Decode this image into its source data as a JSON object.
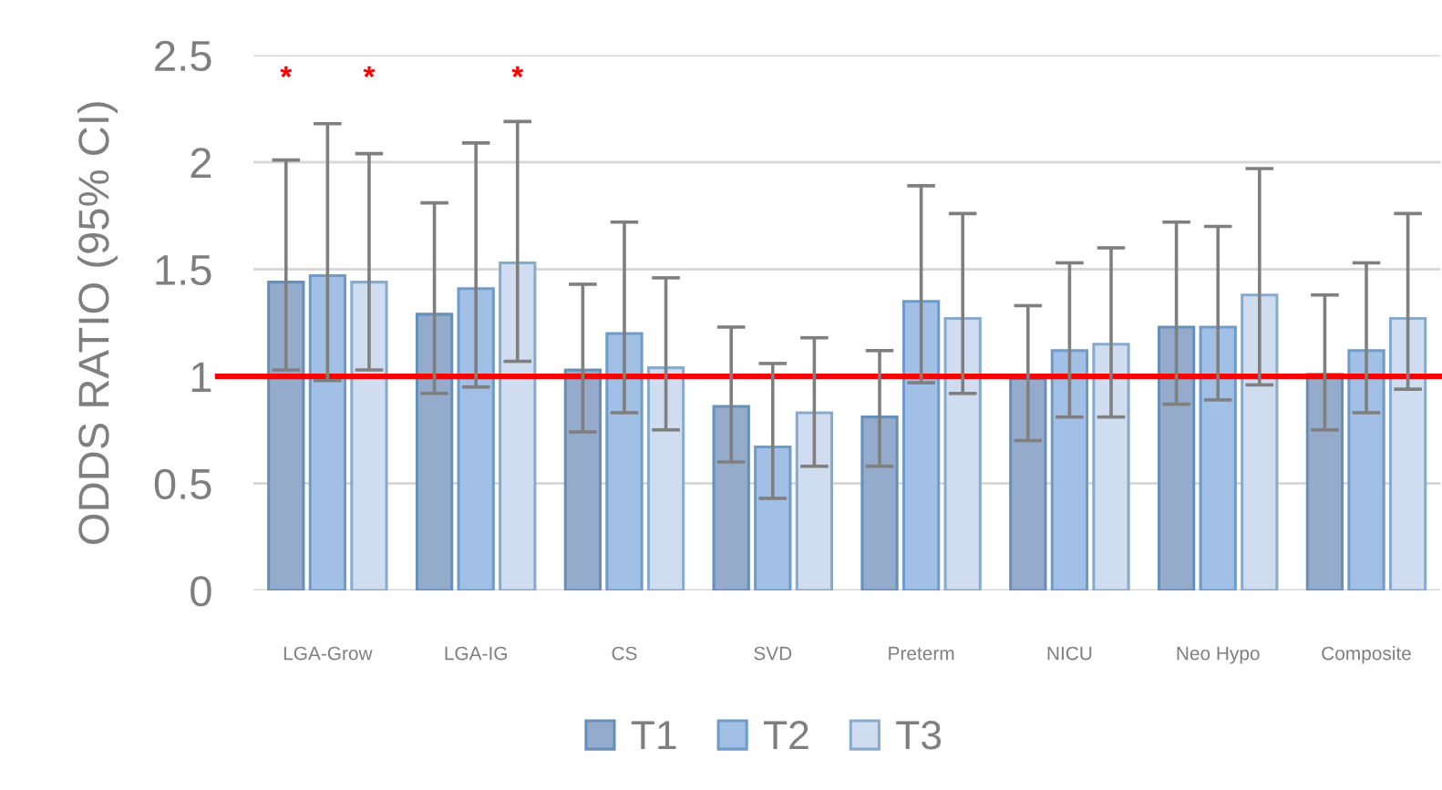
{
  "chart_data": {
    "type": "bar",
    "ylabel": "ODDS RATIO (95% CI)",
    "categories": [
      "LGA-Grow",
      "LGA-IG",
      "CS",
      "SVD",
      "Preterm",
      "NICU",
      "Neo Hypo",
      "Composite"
    ],
    "series": [
      {
        "name": "T1",
        "color": "#94abcb",
        "values": [
          1.44,
          1.29,
          1.03,
          0.86,
          0.81,
          0.99,
          1.23,
          1.01
        ],
        "errors": [
          [
            1.03,
            2.01
          ],
          [
            0.92,
            1.81
          ],
          [
            0.74,
            1.43
          ],
          [
            0.6,
            1.23
          ],
          [
            0.58,
            1.12
          ],
          [
            0.7,
            1.33
          ],
          [
            0.87,
            1.72
          ],
          [
            0.75,
            1.38
          ]
        ]
      },
      {
        "name": "T2",
        "color": "#a2c0e6",
        "values": [
          1.47,
          1.41,
          1.2,
          0.67,
          1.35,
          1.12,
          1.23,
          1.12
        ],
        "errors": [
          [
            0.98,
            2.18
          ],
          [
            0.95,
            2.09
          ],
          [
            0.83,
            1.72
          ],
          [
            0.43,
            1.06
          ],
          [
            0.97,
            1.89
          ],
          [
            0.81,
            1.53
          ],
          [
            0.89,
            1.7
          ],
          [
            0.83,
            1.53
          ]
        ]
      },
      {
        "name": "T3",
        "color": "#d0ddf0",
        "values": [
          1.44,
          1.53,
          1.04,
          0.83,
          1.27,
          1.15,
          1.38,
          1.27
        ],
        "errors": [
          [
            1.03,
            2.04
          ],
          [
            1.07,
            2.19
          ],
          [
            0.75,
            1.46
          ],
          [
            0.58,
            1.18
          ],
          [
            0.92,
            1.76
          ],
          [
            0.81,
            1.6
          ],
          [
            0.96,
            1.97
          ],
          [
            0.94,
            1.76
          ]
        ]
      }
    ],
    "annotations": [
      "*",
      "*",
      "*"
    ],
    "ylim": [
      0,
      2.5
    ],
    "yticks": [
      0,
      0.5,
      1,
      1.5,
      2,
      2.5
    ],
    "ref_lines": [
      {
        "axis": "y",
        "value": 1,
        "color": "#ff0000"
      }
    ],
    "grid": "y",
    "legend": "bottom"
  }
}
